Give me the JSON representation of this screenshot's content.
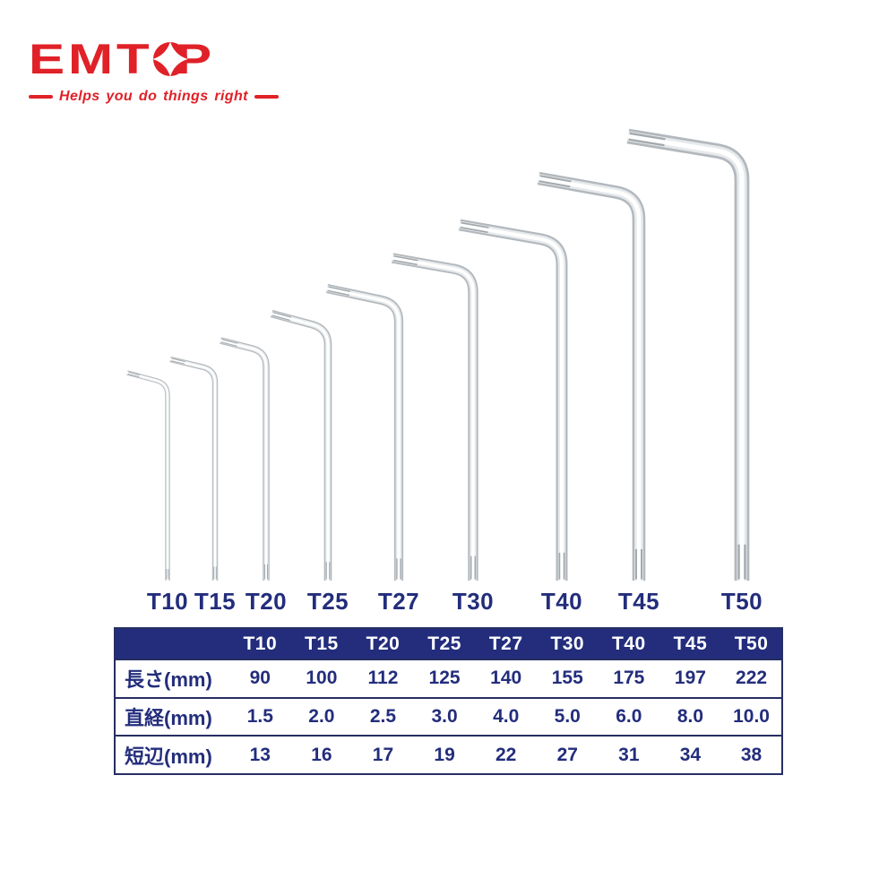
{
  "logo": {
    "brand_pre": "EMT",
    "brand_post": "P",
    "tagline": "Helps you do things right"
  },
  "colors": {
    "red": "#e02128",
    "navy": "#232d7c",
    "chrome_dark": "#b2b8bd",
    "chrome_mid": "#e7eaec",
    "chrome_light": "#ffffff",
    "groove": "#848b91"
  },
  "wrench_labels": [
    "T10",
    "T15",
    "T20",
    "T25",
    "T27",
    "T30",
    "T40",
    "T45",
    "T50"
  ],
  "table": {
    "corner_label": "",
    "header": [
      "T10",
      "T15",
      "T20",
      "T25",
      "T27",
      "T30",
      "T40",
      "T45",
      "T50"
    ],
    "rows": [
      {
        "label": "長さ(mm)",
        "values": [
          "90",
          "100",
          "112",
          "125",
          "140",
          "155",
          "175",
          "197",
          "222"
        ]
      },
      {
        "label": "直経(mm)",
        "values": [
          "1.5",
          "2.0",
          "2.5",
          "3.0",
          "4.0",
          "5.0",
          "6.0",
          "8.0",
          "10.0"
        ]
      },
      {
        "label": "短辺(mm)",
        "values": [
          "13",
          "16",
          "17",
          "19",
          "22",
          "27",
          "31",
          "34",
          "38"
        ]
      }
    ]
  }
}
